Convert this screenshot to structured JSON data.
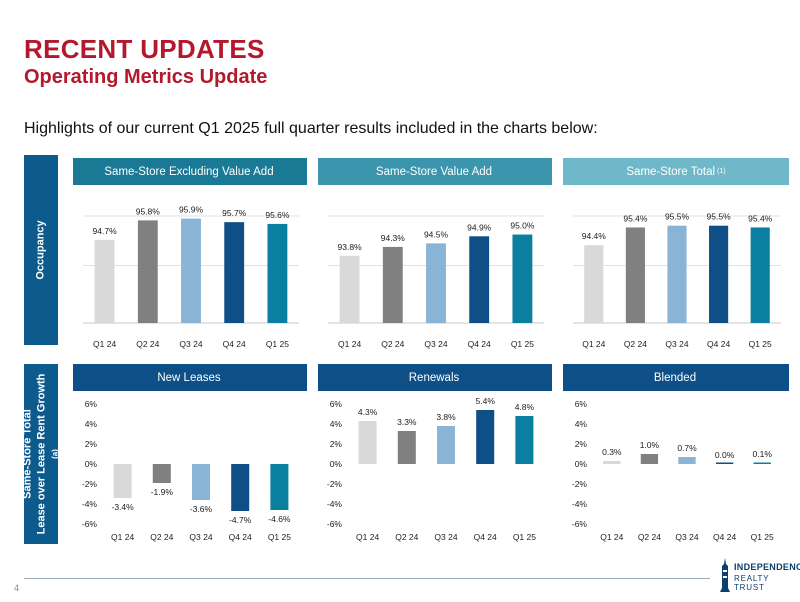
{
  "title": "RECENT UPDATES",
  "subtitle": "Operating Metrics Update",
  "highlights": "Highlights of our current Q1 2025 full quarter results included in the charts below:",
  "side_labels": {
    "occupancy": "Occupancy",
    "growth_line1": "Same-Store Total",
    "growth_line2": "Lease over Lease Rent Growth",
    "growth_note": "(a)"
  },
  "page_number": "4",
  "logo": {
    "line1": "INDEPENDENCE",
    "line2": "REALTY TRUST"
  },
  "colors": [
    "#d9d9d9",
    "#808080",
    "#8ab4d6",
    "#0d4f86",
    "#0a7fa0"
  ],
  "chart_data": [
    {
      "type": "bar",
      "title": "Same-Store Excluding Value Add",
      "title_sup": "",
      "header_color": "#1a7a96",
      "categories": [
        "Q1 24",
        "Q2 24",
        "Q3 24",
        "Q4 24",
        "Q1 25"
      ],
      "values": [
        94.7,
        95.8,
        95.9,
        95.7,
        95.6
      ],
      "labels": [
        "94.7%",
        "95.8%",
        "95.9%",
        "95.7%",
        "95.6%"
      ],
      "ylim": [
        90,
        96.5
      ],
      "grid": true,
      "yticks": []
    },
    {
      "type": "bar",
      "title": "Same-Store Value Add",
      "title_sup": "",
      "header_color": "#3a95ad",
      "categories": [
        "Q1 24",
        "Q2 24",
        "Q3 24",
        "Q4 24",
        "Q1 25"
      ],
      "values": [
        93.8,
        94.3,
        94.5,
        94.9,
        95.0
      ],
      "labels": [
        "93.8%",
        "94.3%",
        "94.5%",
        "94.9%",
        "95.0%"
      ],
      "ylim": [
        90,
        96.5
      ],
      "grid": true,
      "yticks": []
    },
    {
      "type": "bar",
      "title": "Same-Store Total",
      "title_sup": "(1)",
      "header_color": "#6fb8c9",
      "categories": [
        "Q1 24",
        "Q2 24",
        "Q3 24",
        "Q4 24",
        "Q1 25"
      ],
      "values": [
        94.4,
        95.4,
        95.5,
        95.5,
        95.4
      ],
      "labels": [
        "94.4%",
        "95.4%",
        "95.5%",
        "95.5%",
        "95.4%"
      ],
      "ylim": [
        90,
        96.5
      ],
      "grid": true,
      "yticks": []
    },
    {
      "type": "bar",
      "title": "New Leases",
      "title_sup": "",
      "header_color": "#0d4f86",
      "categories": [
        "Q1 24",
        "Q2 24",
        "Q3 24",
        "Q4 24",
        "Q1 25"
      ],
      "values": [
        -3.4,
        -1.9,
        -3.6,
        -4.7,
        -4.6
      ],
      "labels": [
        "-3.4%",
        "-1.9%",
        "-3.6%",
        "-4.7%",
        "-4.6%"
      ],
      "ylim": [
        -6,
        6
      ],
      "grid": false,
      "yticks": [
        "6%",
        "4%",
        "2%",
        "0%",
        "-2%",
        "-4%",
        "-6%"
      ]
    },
    {
      "type": "bar",
      "title": "Renewals",
      "title_sup": "",
      "header_color": "#0d4f86",
      "categories": [
        "Q1 24",
        "Q2 24",
        "Q3 24",
        "Q4 24",
        "Q1 25"
      ],
      "values": [
        4.3,
        3.3,
        3.8,
        5.4,
        4.8
      ],
      "labels": [
        "4.3%",
        "3.3%",
        "3.8%",
        "5.4%",
        "4.8%"
      ],
      "ylim": [
        -6,
        6
      ],
      "grid": false,
      "yticks": [
        "6%",
        "4%",
        "2%",
        "0%",
        "-2%",
        "-4%",
        "-6%"
      ]
    },
    {
      "type": "bar",
      "title": "Blended",
      "title_sup": "",
      "header_color": "#0d4f86",
      "categories": [
        "Q1 24",
        "Q2 24",
        "Q3 24",
        "Q4 24",
        "Q1 25"
      ],
      "values": [
        0.3,
        1.0,
        0.7,
        0.0,
        0.1
      ],
      "labels": [
        "0.3%",
        "1.0%",
        "0.7%",
        "0.0%",
        "0.1%"
      ],
      "ylim": [
        -6,
        6
      ],
      "grid": false,
      "yticks": [
        "6%",
        "4%",
        "2%",
        "0%",
        "-2%",
        "-4%",
        "-6%"
      ]
    }
  ]
}
